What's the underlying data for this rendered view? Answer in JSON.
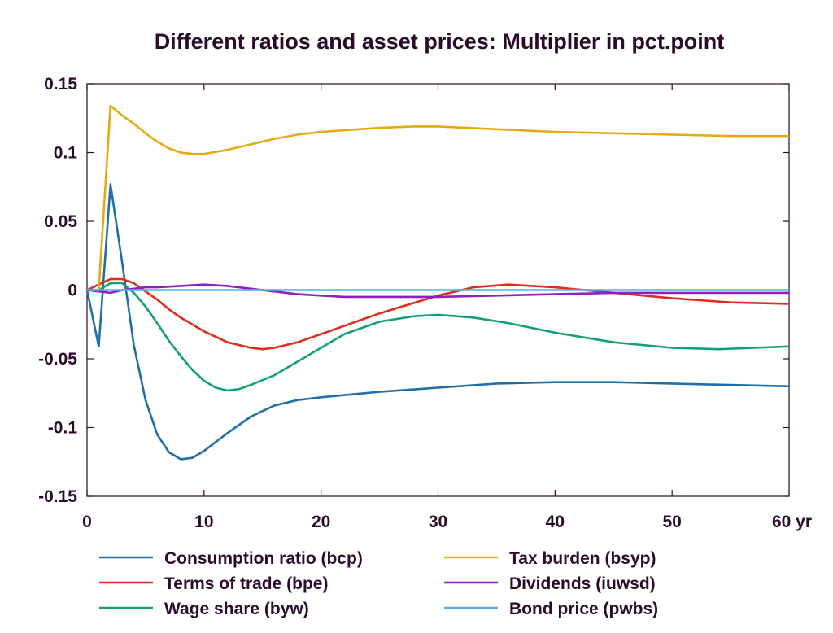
{
  "chart_data": {
    "type": "line",
    "title": "Different ratios and asset prices: Multiplier in pct.point",
    "xlabel": "",
    "ylabel": "",
    "xlim": [
      0,
      60
    ],
    "ylim": [
      -0.15,
      0.15
    ],
    "x_ticks": [
      0,
      10,
      20,
      30,
      40,
      50,
      60
    ],
    "x_tick_labels": [
      "0",
      "10",
      "20",
      "30",
      "40",
      "50",
      "60 yr"
    ],
    "y_ticks": [
      0.15,
      0.1,
      0.05,
      0,
      -0.05,
      -0.1,
      -0.15
    ],
    "y_tick_labels": [
      "0.15",
      "0.1",
      "0.05",
      "0",
      "-0.05",
      "-0.1",
      "-0.15"
    ],
    "grid": false,
    "legend_position": "bottom",
    "series": [
      {
        "name": "Consumption ratio (bcp)",
        "color": "#1f6fa8",
        "x": [
          0,
          1,
          2,
          3,
          4,
          5,
          6,
          7,
          8,
          9,
          10,
          12,
          14,
          16,
          18,
          20,
          25,
          30,
          35,
          40,
          45,
          50,
          55,
          60
        ],
        "y": [
          0,
          -0.041,
          0.077,
          0.02,
          -0.04,
          -0.08,
          -0.105,
          -0.118,
          -0.123,
          -0.122,
          -0.117,
          -0.104,
          -0.092,
          -0.084,
          -0.08,
          -0.078,
          -0.074,
          -0.071,
          -0.068,
          -0.067,
          -0.067,
          -0.068,
          -0.069,
          -0.07
        ]
      },
      {
        "name": "Terms of trade (bpe)",
        "color": "#e02b1f",
        "x": [
          0,
          1,
          2,
          3,
          4,
          5,
          6,
          7,
          8,
          9,
          10,
          12,
          14,
          15,
          16,
          18,
          20,
          25,
          30,
          33,
          36,
          40,
          45,
          50,
          55,
          60
        ],
        "y": [
          0,
          0.004,
          0.008,
          0.008,
          0.005,
          -0.001,
          -0.007,
          -0.014,
          -0.02,
          -0.025,
          -0.03,
          -0.038,
          -0.042,
          -0.043,
          -0.042,
          -0.038,
          -0.032,
          -0.017,
          -0.004,
          0.002,
          0.004,
          0.002,
          -0.002,
          -0.006,
          -0.009,
          -0.01
        ]
      },
      {
        "name": "Wage share (byw)",
        "color": "#12a07a",
        "x": [
          0,
          1,
          2,
          3,
          4,
          5,
          6,
          7,
          8,
          9,
          10,
          11,
          12,
          13,
          14,
          16,
          18,
          20,
          22,
          25,
          28,
          30,
          33,
          36,
          40,
          45,
          50,
          54,
          57,
          60
        ],
        "y": [
          0,
          0,
          0.005,
          0.005,
          -0.002,
          -0.012,
          -0.024,
          -0.037,
          -0.048,
          -0.058,
          -0.066,
          -0.071,
          -0.073,
          -0.072,
          -0.069,
          -0.062,
          -0.052,
          -0.042,
          -0.032,
          -0.023,
          -0.019,
          -0.018,
          -0.02,
          -0.024,
          -0.031,
          -0.038,
          -0.042,
          -0.043,
          -0.042,
          -0.041
        ]
      },
      {
        "name": "Tax burden (bsyp)",
        "color": "#e5a912",
        "x": [
          0,
          1,
          2,
          3,
          4,
          5,
          6,
          7,
          8,
          9,
          10,
          12,
          14,
          16,
          18,
          20,
          25,
          28,
          30,
          35,
          40,
          45,
          50,
          55,
          60
        ],
        "y": [
          0,
          0,
          0.134,
          0.127,
          0.121,
          0.114,
          0.108,
          0.103,
          0.1,
          0.099,
          0.099,
          0.102,
          0.106,
          0.11,
          0.113,
          0.115,
          0.118,
          0.119,
          0.119,
          0.117,
          0.115,
          0.114,
          0.113,
          0.112,
          0.112
        ]
      },
      {
        "name": "Dividends (iuwsd)",
        "color": "#8f1fc0",
        "x": [
          0,
          1,
          2,
          3,
          4,
          5,
          6,
          8,
          10,
          12,
          14,
          16,
          18,
          20,
          22,
          25,
          28,
          30,
          35,
          40,
          45,
          50,
          55,
          60
        ],
        "y": [
          0,
          -0.001,
          -0.002,
          0,
          0.001,
          0.002,
          0.002,
          0.003,
          0.004,
          0.003,
          0.001,
          -0.001,
          -0.003,
          -0.004,
          -0.005,
          -0.005,
          -0.005,
          -0.005,
          -0.004,
          -0.003,
          -0.002,
          -0.002,
          -0.002,
          -0.002
        ]
      },
      {
        "name": "Bond price (pwbs)",
        "color": "#4fb2e8",
        "x": [
          0,
          10,
          20,
          30,
          40,
          50,
          60
        ],
        "y": [
          0,
          0,
          0,
          0,
          0,
          0,
          0
        ]
      }
    ]
  }
}
